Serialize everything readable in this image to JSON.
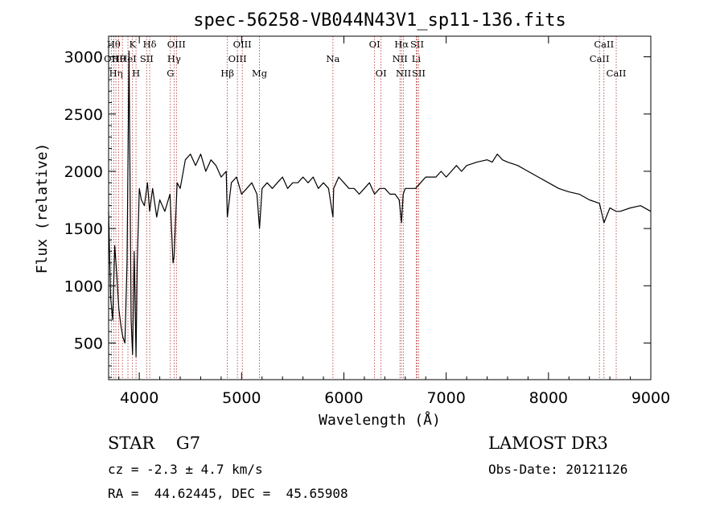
{
  "chart_data": {
    "type": "line",
    "title": "spec-56258-VB044N43V1_sp11-136.fits",
    "xlabel": "Wavelength (Å)",
    "ylabel": "Flux (relative)",
    "xlim": [
      3700,
      9000
    ],
    "ylim": [
      180,
      3180
    ],
    "x_ticks": [
      4000,
      5000,
      6000,
      7000,
      8000,
      9000
    ],
    "y_ticks": [
      500,
      1000,
      1500,
      2000,
      2500,
      3000
    ],
    "series": [
      {
        "name": "flux",
        "x": [
          3700,
          3720,
          3740,
          3760,
          3780,
          3800,
          3820,
          3840,
          3860,
          3880,
          3900,
          3920,
          3934,
          3950,
          3968,
          3980,
          4000,
          4020,
          4050,
          4080,
          4101,
          4130,
          4170,
          4200,
          4250,
          4300,
          4330,
          4340,
          4370,
          4400,
          4450,
          4500,
          4550,
          4600,
          4650,
          4700,
          4750,
          4800,
          4850,
          4861,
          4900,
          4950,
          5000,
          5050,
          5100,
          5150,
          5175,
          5200,
          5250,
          5300,
          5350,
          5400,
          5450,
          5500,
          5550,
          5600,
          5650,
          5700,
          5750,
          5800,
          5850,
          5893,
          5900,
          5950,
          6000,
          6050,
          6100,
          6150,
          6200,
          6250,
          6300,
          6350,
          6400,
          6450,
          6500,
          6540,
          6563,
          6580,
          6600,
          6650,
          6700,
          6750,
          6800,
          6850,
          6900,
          6950,
          7000,
          7050,
          7100,
          7150,
          7200,
          7300,
          7400,
          7450,
          7500,
          7550,
          7600,
          7700,
          7800,
          7900,
          8000,
          8100,
          8200,
          8300,
          8400,
          8498,
          8542,
          8600,
          8662,
          8700,
          8800,
          8900,
          9000
        ],
        "y": [
          1650,
          900,
          700,
          1350,
          1100,
          800,
          650,
          550,
          500,
          1200,
          3050,
          700,
          400,
          1300,
          380,
          1200,
          1850,
          1750,
          1700,
          1900,
          1650,
          1850,
          1600,
          1750,
          1650,
          1800,
          1200,
          1250,
          1900,
          1850,
          2100,
          2150,
          2050,
          2150,
          2000,
          2100,
          2050,
          1950,
          2000,
          1600,
          1900,
          1950,
          1800,
          1850,
          1900,
          1800,
          1500,
          1850,
          1900,
          1850,
          1900,
          1950,
          1850,
          1900,
          1900,
          1950,
          1900,
          1950,
          1850,
          1900,
          1850,
          1600,
          1850,
          1950,
          1900,
          1850,
          1850,
          1800,
          1850,
          1900,
          1800,
          1850,
          1850,
          1800,
          1800,
          1750,
          1550,
          1800,
          1850,
          1850,
          1850,
          1900,
          1950,
          1950,
          1950,
          2000,
          1950,
          2000,
          2050,
          2000,
          2050,
          2080,
          2100,
          2080,
          2150,
          2100,
          2080,
          2050,
          2000,
          1950,
          1900,
          1850,
          1820,
          1800,
          1750,
          1720,
          1550,
          1680,
          1650,
          1650,
          1680,
          1700,
          1650
        ]
      }
    ],
    "line_markers": [
      {
        "w": 3727,
        "label": "OII",
        "row": 1
      },
      {
        "w": 3750,
        "label": "Hθ",
        "row": 0
      },
      {
        "w": 3771,
        "label": "Hη",
        "row": 2
      },
      {
        "w": 3798,
        "label": "Hθ",
        "row": 1
      },
      {
        "w": 3835,
        "label": "",
        "row": 0
      },
      {
        "w": 3889,
        "label": "HeI",
        "row": 1
      },
      {
        "w": 3934,
        "label": "K",
        "row": 0
      },
      {
        "w": 3968,
        "label": "H",
        "row": 2
      },
      {
        "w": 4072,
        "label": "SII",
        "row": 1
      },
      {
        "w": 4102,
        "label": "Hδ",
        "row": 0
      },
      {
        "w": 4304,
        "label": "G",
        "row": 2
      },
      {
        "w": 4340,
        "label": "Hγ",
        "row": 1
      },
      {
        "w": 4363,
        "label": "OIII",
        "row": 0
      },
      {
        "w": 4861,
        "label": "Hβ",
        "row": 2
      },
      {
        "w": 4959,
        "label": "OIII",
        "row": 1
      },
      {
        "w": 5007,
        "label": "OIII",
        "row": 0
      },
      {
        "w": 5175,
        "label": "Mg",
        "row": 2
      },
      {
        "w": 5893,
        "label": "Na",
        "row": 1
      },
      {
        "w": 6300,
        "label": "OI",
        "row": 0
      },
      {
        "w": 6363,
        "label": "OI",
        "row": 2
      },
      {
        "w": 6548,
        "label": "NII",
        "row": 1
      },
      {
        "w": 6563,
        "label": "Hα",
        "row": 0
      },
      {
        "w": 6583,
        "label": "NII",
        "row": 2
      },
      {
        "w": 6707,
        "label": "Li",
        "row": 1
      },
      {
        "w": 6716,
        "label": "SII",
        "row": 0
      },
      {
        "w": 6731,
        "label": "SII",
        "row": 2
      },
      {
        "w": 8498,
        "label": "CaII",
        "row": 1
      },
      {
        "w": 8542,
        "label": "CaII",
        "row": 0
      },
      {
        "w": 8662,
        "label": "CaII",
        "row": 2
      }
    ],
    "colors": {
      "spectrum": "#000000",
      "markers": "#b03030",
      "axes": "#000000"
    }
  },
  "info": {
    "class_text": "STAR    G7",
    "cz_text": "cz = -2.3 ± 4.7 km/s",
    "coords_text": "RA =  44.62445, DEC =  45.65908",
    "survey_text": "LAMOST DR3",
    "obsdate_text": "Obs-Date: 20121126"
  }
}
